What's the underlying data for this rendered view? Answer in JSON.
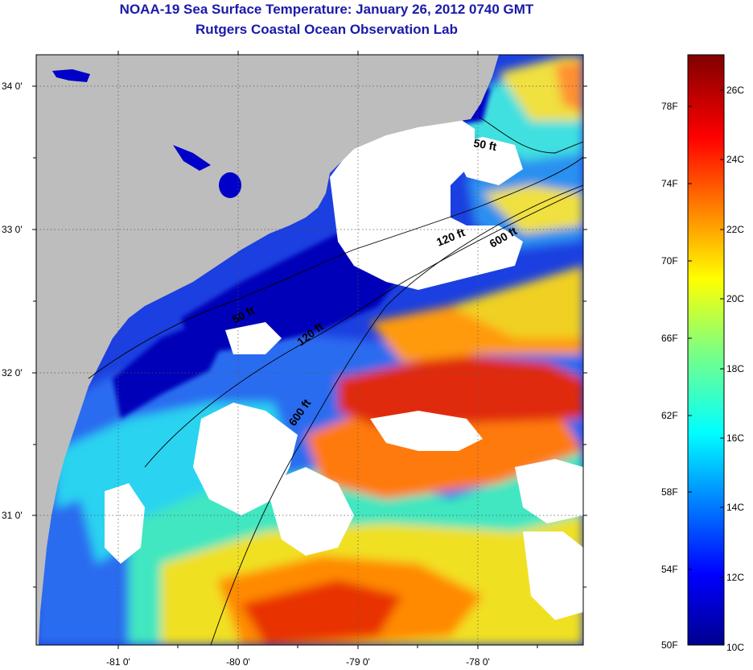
{
  "header": {
    "title": "NOAA-19 Sea Surface Temperature:  January 26, 2012 0740 GMT",
    "subtitle": "Rutgers Coastal Ocean Observation Lab"
  },
  "map": {
    "lat_labels": [
      "34 0'",
      "33 0'",
      "32 0'",
      "31 0'"
    ],
    "lon_labels": [
      "-81 0'",
      "-80 0'",
      "-79 0'",
      "-78 0'"
    ],
    "isobath_labels": [
      "50 ft",
      "120 ft",
      "600 ft",
      "50 ft",
      "120 ft",
      "600 ft"
    ]
  },
  "colorbar": {
    "fahrenheit_labels": [
      "78F",
      "74F",
      "70F",
      "66F",
      "62F",
      "58F",
      "54F",
      "50F"
    ],
    "celsius_labels": [
      "26C",
      "24C",
      "22C",
      "20C",
      "18C",
      "16C",
      "14C",
      "12C",
      "10C"
    ]
  },
  "colors": {
    "land": "#bdbdbd",
    "cloud": "#ffffff",
    "title_text": "#1a1aa8"
  }
}
